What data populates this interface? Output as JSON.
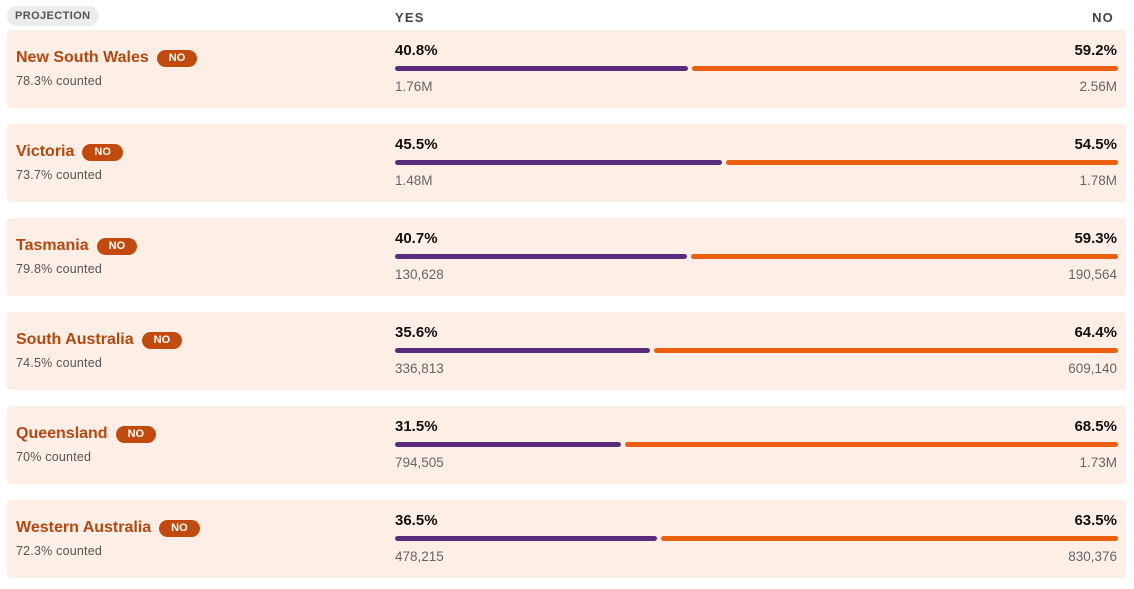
{
  "header": {
    "projection_label": "PROJECTION",
    "yes_label": "YES",
    "no_label": "NO"
  },
  "colors": {
    "yes_bar": "#5b2c7e",
    "no_bar": "#ec5f0c",
    "row_background": "#fdefe6",
    "state_name": "#b8470f",
    "badge": "#c24a0c"
  },
  "chart_data": {
    "type": "bar",
    "orientation": "horizontal-stacked",
    "categories": [
      "New South Wales",
      "Victoria",
      "Tasmania",
      "South Australia",
      "Queensland",
      "Western Australia"
    ],
    "series": [
      {
        "name": "YES",
        "values": [
          40.8,
          45.5,
          40.7,
          35.6,
          31.5,
          36.5
        ]
      },
      {
        "name": "NO",
        "values": [
          59.2,
          54.5,
          59.3,
          64.4,
          68.5,
          63.5
        ]
      }
    ],
    "rows": [
      {
        "state": "New South Wales",
        "badge": "NO",
        "counted": "78.3% counted",
        "yes_pct": 40.8,
        "no_pct": 59.2,
        "yes_pct_label": "40.8%",
        "no_pct_label": "59.2%",
        "yes_votes": "1.76M",
        "no_votes": "2.56M"
      },
      {
        "state": "Victoria",
        "badge": "NO",
        "counted": "73.7% counted",
        "yes_pct": 45.5,
        "no_pct": 54.5,
        "yes_pct_label": "45.5%",
        "no_pct_label": "54.5%",
        "yes_votes": "1.48M",
        "no_votes": "1.78M"
      },
      {
        "state": "Tasmania",
        "badge": "NO",
        "counted": "79.8% counted",
        "yes_pct": 40.7,
        "no_pct": 59.3,
        "yes_pct_label": "40.7%",
        "no_pct_label": "59.3%",
        "yes_votes": "130,628",
        "no_votes": "190,564"
      },
      {
        "state": "South Australia",
        "badge": "NO",
        "counted": "74.5% counted",
        "yes_pct": 35.6,
        "no_pct": 64.4,
        "yes_pct_label": "35.6%",
        "no_pct_label": "64.4%",
        "yes_votes": "336,813",
        "no_votes": "609,140"
      },
      {
        "state": "Queensland",
        "badge": "NO",
        "counted": "70% counted",
        "yes_pct": 31.5,
        "no_pct": 68.5,
        "yes_pct_label": "31.5%",
        "no_pct_label": "68.5%",
        "yes_votes": "794,505",
        "no_votes": "1.73M"
      },
      {
        "state": "Western Australia",
        "badge": "NO",
        "counted": "72.3% counted",
        "yes_pct": 36.5,
        "no_pct": 63.5,
        "yes_pct_label": "36.5%",
        "no_pct_label": "63.5%",
        "yes_votes": "478,215",
        "no_votes": "830,376"
      }
    ],
    "xlim": [
      0,
      100
    ]
  }
}
